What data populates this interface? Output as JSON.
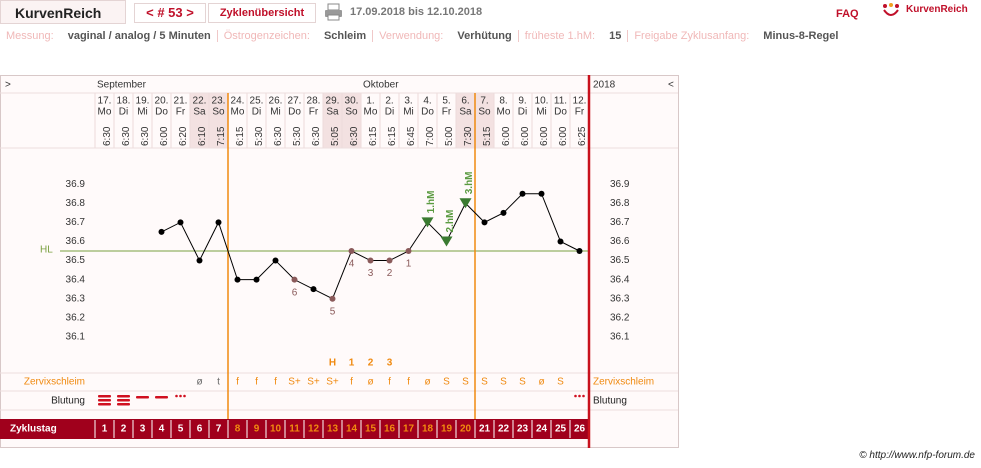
{
  "header": {
    "app_tab": "KurvenReich",
    "cycle_nav": "< # 53 >",
    "overview_tab": "Zyklenübersicht",
    "date_range": "17.09.2018 bis 12.10.2018",
    "faq": "FAQ",
    "logo": "KurvenReich"
  },
  "settings": [
    {
      "label": "Messung:",
      "value": "vaginal / analog / 5 Minuten"
    },
    {
      "label": "Östrogenzeichen:",
      "value": "Schleim"
    },
    {
      "label": "Verwendung:",
      "value": "Verhütung"
    },
    {
      "label": "früheste 1.hM:",
      "value": "15"
    },
    {
      "label": "Freigabe Zyklusanfang:",
      "value": "Minus-8-Regel"
    }
  ],
  "footer": "© http://www.nfp-forum.de",
  "chart_data": {
    "type": "line",
    "expand_left": ">",
    "collapse_right": "<",
    "year": "2018",
    "months": [
      {
        "name": "September",
        "start_day": 1
      },
      {
        "name": "Oktober",
        "start_day": 15
      }
    ],
    "categories": [
      "17.",
      "18.",
      "19.",
      "20.",
      "21.",
      "22.",
      "23.",
      "24.",
      "25.",
      "26.",
      "27.",
      "28.",
      "29.",
      "30.",
      "1.",
      "2.",
      "3.",
      "4.",
      "5.",
      "6.",
      "7.",
      "8.",
      "9.",
      "10.",
      "11.",
      "12."
    ],
    "weekdays": [
      "Mo",
      "Di",
      "Mi",
      "Do",
      "Fr",
      "Sa",
      "So",
      "Mo",
      "Di",
      "Mi",
      "Do",
      "Fr",
      "Sa",
      "So",
      "Mo",
      "Di",
      "Mi",
      "Do",
      "Fr",
      "Sa",
      "So",
      "Mo",
      "Di",
      "Mi",
      "Do",
      "Fr"
    ],
    "times": [
      "6:30",
      "6:30",
      "6:30",
      "6:00",
      "6:20",
      "6:10",
      "7:15",
      "6:15",
      "5:30",
      "6:30",
      "5:30",
      "6:30",
      "5:05",
      "6:30",
      "6:15",
      "6:15",
      "6:45",
      "7:00",
      "5:00",
      "7:30",
      "5:15",
      "6:00",
      "6:00",
      "6:00",
      "6:00",
      "6:25"
    ],
    "values": [
      null,
      null,
      null,
      36.65,
      36.7,
      36.5,
      36.7,
      36.4,
      36.4,
      36.5,
      36.4,
      36.35,
      36.3,
      36.55,
      36.5,
      36.5,
      36.55,
      36.7,
      36.6,
      36.8,
      36.7,
      36.75,
      36.85,
      36.85,
      36.6,
      36.55
    ],
    "color": "#000000",
    "ylim": [
      36.0,
      37.1
    ],
    "yticks": [
      36.1,
      36.2,
      36.3,
      36.4,
      36.5,
      36.6,
      36.7,
      36.8,
      36.9
    ],
    "coverline": {
      "label": "HL",
      "value": 36.55,
      "color": "#7aa040"
    },
    "low_numbers": [
      null,
      null,
      null,
      null,
      null,
      null,
      null,
      null,
      null,
      null,
      6,
      null,
      5,
      4,
      3,
      2,
      1,
      null,
      null,
      null,
      null,
      null,
      null,
      null,
      null,
      null
    ],
    "high_markers": [
      null,
      null,
      null,
      null,
      null,
      null,
      null,
      null,
      null,
      null,
      null,
      null,
      null,
      null,
      null,
      null,
      null,
      "1.hM",
      "2.hM",
      "3.hM",
      null,
      null,
      null,
      null,
      null,
      null
    ],
    "peak_row": [
      null,
      null,
      null,
      null,
      null,
      null,
      null,
      null,
      null,
      null,
      null,
      null,
      "H",
      "1",
      "2",
      "3",
      null,
      null,
      null,
      null,
      null,
      null,
      null,
      null,
      null,
      null
    ],
    "mucus_label": "Zervixschleim",
    "mucus": [
      null,
      null,
      null,
      null,
      null,
      "ø",
      "t",
      "f",
      "f",
      "f",
      "S+",
      "S+",
      "S+",
      "f",
      "ø",
      "f",
      "f",
      "ø",
      "S",
      "S",
      "S",
      "S",
      "S",
      "ø",
      "S",
      null
    ],
    "bleeding_label": "Blutung",
    "cycle_day_label": "Zyklustag",
    "cycle_days": [
      1,
      2,
      3,
      4,
      5,
      6,
      7,
      8,
      9,
      10,
      11,
      12,
      13,
      14,
      15,
      16,
      17,
      18,
      19,
      20,
      21,
      22,
      23,
      24,
      25,
      26
    ],
    "fertile_window": {
      "start_day": 8,
      "end_day": 20
    }
  }
}
